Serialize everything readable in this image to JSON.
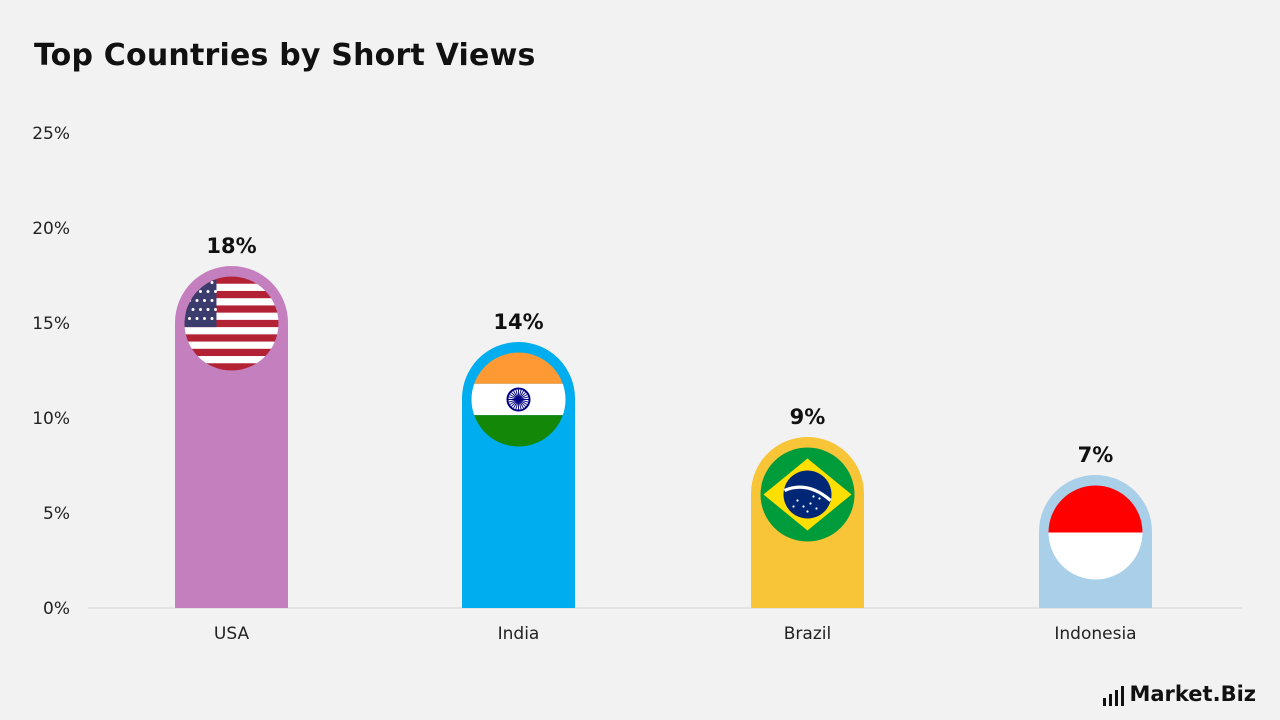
{
  "title": "Top Countries by Short Views",
  "brand": {
    "name": "Market.Biz"
  },
  "chart_data": {
    "type": "bar",
    "categories": [
      "USA",
      "India",
      "Brazil",
      "Indonesia"
    ],
    "values": [
      18,
      14,
      9,
      7
    ],
    "data_labels": [
      "18%",
      "14%",
      "9%",
      "7%"
    ],
    "colors": [
      "#c47fbf",
      "#00adef",
      "#f8c538",
      "#a9cfe9"
    ],
    "flag_icons": [
      "usa-flag-icon",
      "india-flag-icon",
      "brazil-flag-icon",
      "indonesia-flag-icon"
    ],
    "ylim": [
      0,
      25
    ],
    "yticks": [
      0,
      5,
      10,
      15,
      20,
      25
    ],
    "ytick_labels": [
      "0%",
      "5%",
      "10%",
      "15%",
      "20%",
      "25%"
    ],
    "grid": false,
    "xlabel": "",
    "ylabel": ""
  }
}
